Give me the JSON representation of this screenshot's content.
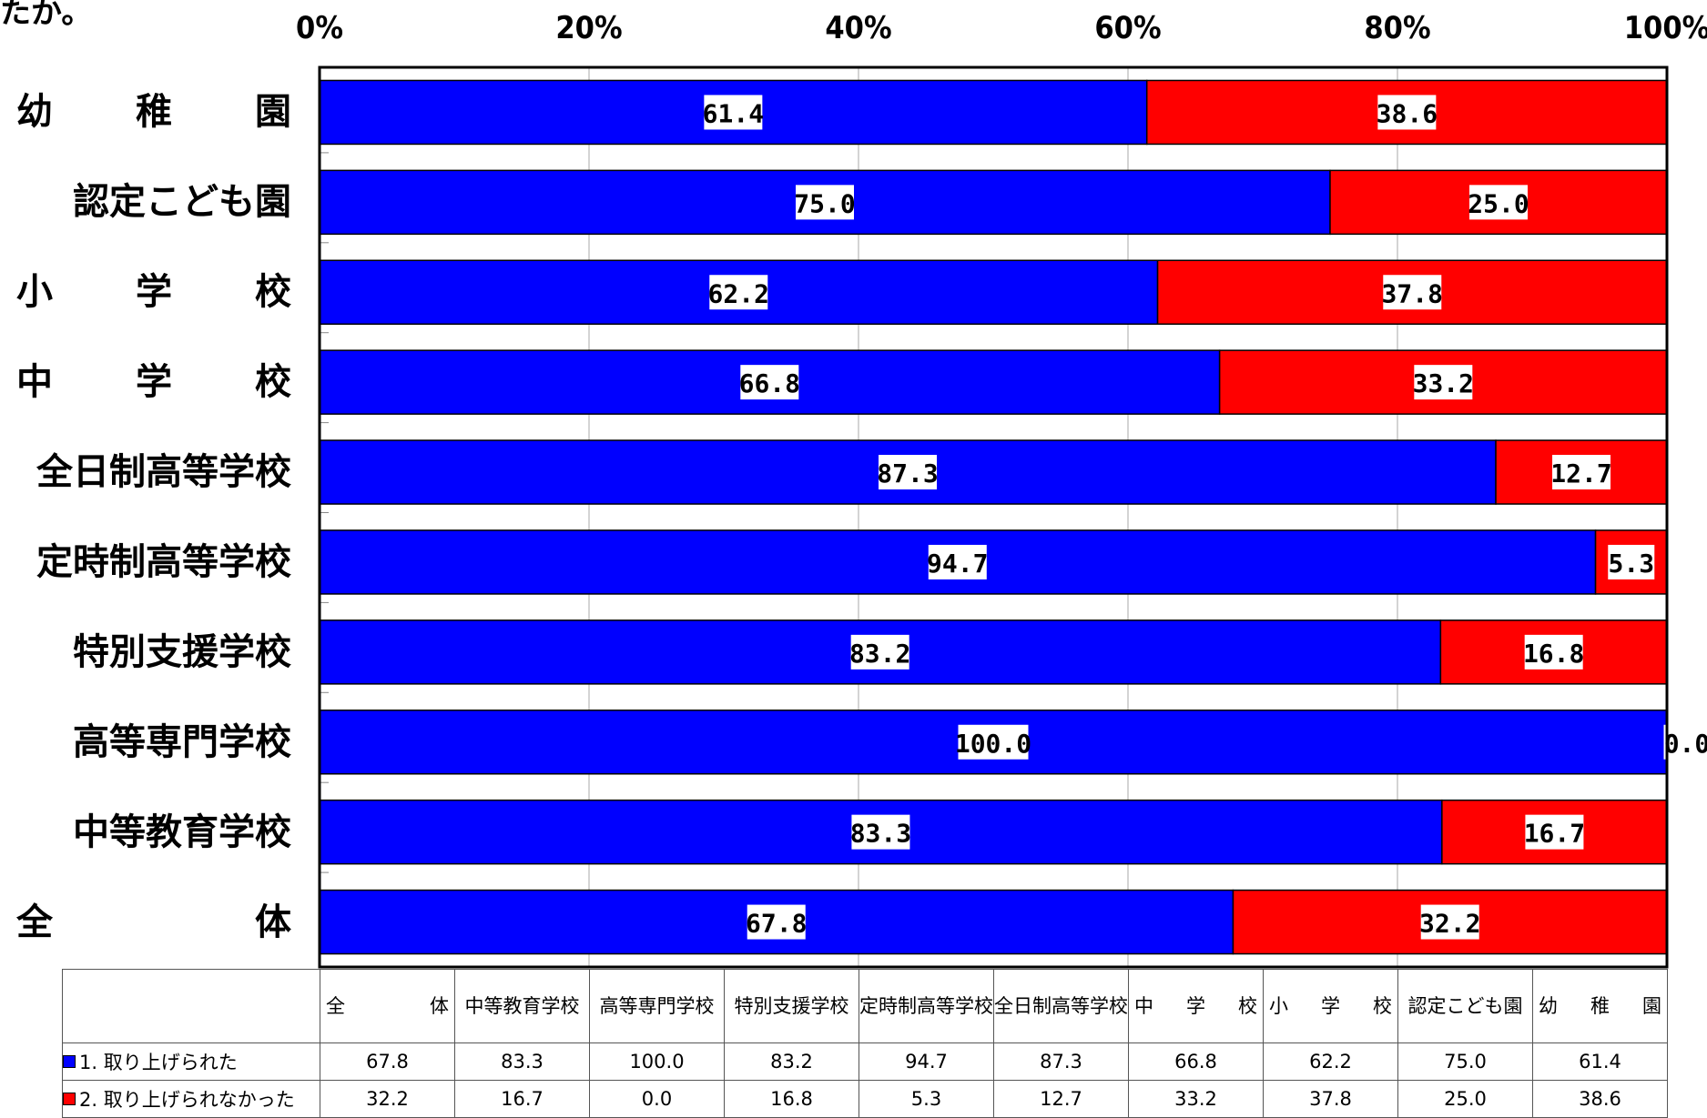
{
  "header_fragment": "たか。",
  "chart_data": {
    "type": "bar",
    "orientation": "horizontal",
    "stacked": "100%",
    "x_ticks": [
      "0%",
      "20%",
      "40%",
      "60%",
      "80%",
      "100%"
    ],
    "xlim": [
      0,
      100
    ],
    "categories": [
      "幼稚園",
      "認定こども園",
      "小学校",
      "中学校",
      "全日制高等学校",
      "定時制高等学校",
      "特別支援学校",
      "高等専門学校",
      "中等教育学校",
      "全体"
    ],
    "series": [
      {
        "name": "1. 取り上げられた",
        "color": "#0000ff",
        "values": [
          61.4,
          75.0,
          62.2,
          66.8,
          87.3,
          94.7,
          83.2,
          100.0,
          83.3,
          67.8
        ]
      },
      {
        "name": "2. 取り上げられなかった",
        "color": "#ff0000",
        "values": [
          38.6,
          25.0,
          37.8,
          33.2,
          12.7,
          5.3,
          16.8,
          0.0,
          16.7,
          32.2
        ]
      }
    ],
    "grid": true
  },
  "table": {
    "columns": [
      "全　体",
      "中等教育学校",
      "高等専門学校",
      "特別支援学校",
      "定時制高等学校",
      "全日制高等学校",
      "中　学　校",
      "小　学　校",
      "認定こども園",
      "幼　稚　園"
    ],
    "rows": [
      {
        "series": "1. 取り上げられた",
        "values": [
          "67.8",
          "83.3",
          "100.0",
          "83.2",
          "94.7",
          "87.3",
          "66.8",
          "62.2",
          "75.0",
          "61.4"
        ]
      },
      {
        "series": "2. 取り上げられなかった",
        "values": [
          "32.2",
          "16.7",
          "0.0",
          "16.8",
          "5.3",
          "12.7",
          "33.2",
          "37.8",
          "25.0",
          "38.6"
        ]
      }
    ]
  }
}
